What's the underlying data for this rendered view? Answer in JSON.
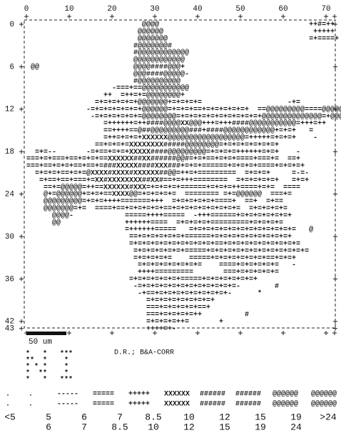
{
  "x_axis": {
    "ticks": [
      "0",
      "10",
      "20",
      "30",
      "40",
      "50",
      "60",
      "70"
    ]
  },
  "y_axis": {
    "ticks": [
      {
        "row": "0",
        "label": "0"
      },
      {
        "row": "6",
        "label": "6"
      },
      {
        "row": "12",
        "label": "12"
      },
      {
        "row": "18",
        "label": "18"
      },
      {
        "row": "24",
        "label": "24"
      },
      {
        "row": "30",
        "label": "30"
      },
      {
        "row": "36",
        "label": "36"
      },
      {
        "row": "42",
        "label": "42"
      },
      {
        "row": "43",
        "label": "43"
      }
    ]
  },
  "map_rows": [
    "                           @@@@                                   ++#=++",
    "                          @@@@@@                                   +++++",
    "                          @@@@@@@                                 =+====+",
    "                         #@@@@@@@#",
    "                         #@@@@@@@@@@@@",
    "                         @@@@@@@@@@@@",
    " @@                      @@@@####@@@+",
    "                         @@@####@@@@@-",
    "                         #@@@@@@@@@@",
    "                    -===+==@@@@@@@@@@@",
    "                  ++  =++=+=@@@@@@@@+",
    "                =+=+=+=+=+@@@@@@@+=+=+=+=                    -+=",
    "              -=+=+=+=+=+=+@@@@@@=+=+=+==+=+=+=+=+=+  ==@@@@@@@@@====@@@@@@-",
    "               -=+=+=+=+=+=@@@@@@@@=+=+=+=+=+=+=+=+=+=+@@@@@@@@@@@@@@=+@@@@",
    "                  =++++++=++####@@@@XX@@@+++=+++####@@@@@@@@@@@=+++=++",
    "                  ==++++==@##@@@@@@@@@###+####@@@@@@@@@@@@+=+=+   =",
    "                  =++=+=+=+XXXXXX@@@@@@@@@@@@@@@@@@=+++++=+=+=+    -",
    "                ==+=+=+=XXXXXXXX#####@@@@@@@@=+=+=+=+=+=+=+",
    "  =+=--       -=+==+=+=+XXXXX####@@@@@@@@@=+=+=+=++++++=+=+    -",
    "===+=+===+==+=+=+==XXXXXX##XX######@@#=+=+==+=+=+====+===+=  ==+",
    "===+==+=+=+==+==+=###XXXXX####XXX###+=+=+======+=+=+=+====+=+=+=+",
    "  =+=+=+==+=+=@XXXX#XXXX#XXXXXX##@@=++=+=========  =+=+=+     =-=-",
    "   =+==+==+===+=XX#XXXXXXXX##XX#==+=+++========  =+=+=+=+=+   =+=+",
    "    ==+=@@@@@=++==XXXXXX#XXX=+=+=+=+======+=+=+=++====+=+=  ====",
    "    @+=@@@@@@+=+=+==XXXX@@=+=+=+=+=  ======== =+=@@@@@@  ===+=",
    "    @@@@@@@@@=+=+=++++=======+++  =+=+=+=+=+====+  ==+  =+==",
    "    @@@@@@@=+=  ====+==+=+=+=+=+==+=+=+=+=+=+=+=+=  =+=+=+=+=",
    "      @@@@-            =====++++=====  -+++======+=+=+=+=+=+=+",
    "      @@               ++++++====  =+=+=+=+=========+=+=+=+=",
    "                       =++++++=====   =+=+=+=+=+=+=+=+=+=+=+=+=   @",
    "                        ==+=+=+=+=+=+======+=+=+=+=+=+=+=+=+=+",
    "                        =+=+=+=+=+=+=+=+=+=+==+=+=+=+=+=+=+=+=+=",
    "                         =+=+=+=+=+=+=====+=+=+=+=+=+=+=+=+=+=+=+=",
    "                         =+=+=+=+=    =====+=+=+=+=+=+=+==+=+=+",
    "                          =+=+=+=+=+=+=+=    ====+=+=+=+=+=   -           @",
    "                          ++++=========       ===+=+=+=+=+=",
    "                        =+=+=+=+=+=+=====+=+=+=+=+=+=+",
    "                         -=+=+=+=+=+=+=+=+=+=+=+=-        #",
    "                          -+==+=+=+=+=+=+=+=+=+-      *",
    "                            =+=+=+=+=+=+=+=+",
    "                            ===+=+=+=+=+==+",
    "                            ===+=+=+=+=++          #",
    "                            =+=+=+=++=       +",
    "                            ++++=+-"
  ],
  "scale_bar": {
    "label": "50 um"
  },
  "glyph_block": [
    "*   *   ***",
    "**  *    *",
    "* * *    *",
    "*  **    *",
    "*   *   ***"
  ],
  "note": "D.R.; B&A-CORR",
  "key": [
    {
      "symbol": ".",
      "label": "<5"
    },
    {
      "symbol": ".",
      "from": "5",
      "to": "6"
    },
    {
      "symbol": "-----",
      "from": "6",
      "to": "7"
    },
    {
      "symbol": "=====",
      "from": "7",
      "to": "8.5"
    },
    {
      "symbol": "+++++",
      "from": "8.5",
      "to": "10"
    },
    {
      "symbol": "XXXXXX",
      "from": "10",
      "to": "12"
    },
    {
      "symbol": "######",
      "from": "12",
      "to": "15"
    },
    {
      "symbol": "######",
      "from": "15",
      "to": "19"
    },
    {
      "symbol": "@@@@@@",
      "from": "19",
      "to": "24"
    },
    {
      "symbol": "@@@@@@",
      "label": ">24"
    }
  ]
}
